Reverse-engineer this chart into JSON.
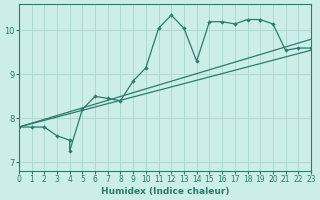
{
  "xlabel": "Humidex (Indice chaleur)",
  "bg_color": "#cceee8",
  "line_color": "#2d7a6e",
  "grid_color": "#aad4cc",
  "axis_color": "#2d7a6e",
  "xlim": [
    0,
    23
  ],
  "ylim": [
    6.8,
    10.6
  ],
  "xticks": [
    0,
    1,
    2,
    3,
    4,
    5,
    6,
    7,
    8,
    9,
    10,
    11,
    12,
    13,
    14,
    15,
    16,
    17,
    18,
    19,
    20,
    21,
    22,
    23
  ],
  "yticks": [
    7,
    8,
    9,
    10
  ],
  "series1_x": [
    0,
    1,
    2,
    3,
    4,
    4,
    5,
    6,
    7,
    8,
    9,
    10,
    11,
    12,
    13,
    14,
    15,
    16,
    17,
    18,
    19,
    20,
    21,
    22,
    23
  ],
  "series1_y": [
    7.8,
    7.8,
    7.8,
    7.6,
    7.5,
    7.25,
    8.2,
    8.5,
    8.45,
    8.4,
    8.85,
    9.15,
    10.05,
    10.35,
    10.05,
    9.3,
    10.2,
    10.2,
    10.15,
    10.25,
    10.25,
    10.15,
    9.55,
    9.6,
    9.6
  ],
  "series2_x": [
    0,
    23
  ],
  "series2_y": [
    7.8,
    9.55
  ],
  "series3_x": [
    0,
    23
  ],
  "series3_y": [
    7.8,
    9.8
  ],
  "figsize": [
    3.2,
    2.0
  ],
  "dpi": 100
}
